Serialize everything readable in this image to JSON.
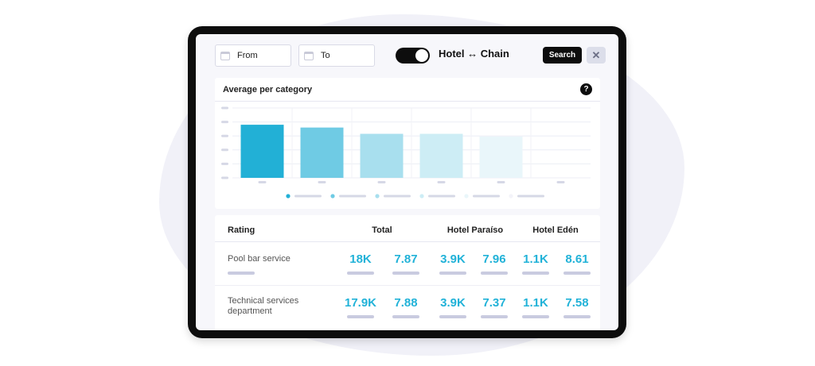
{
  "filters": {
    "from_label": "From",
    "to_label": "To",
    "toggle_label": "Hotel ↔ Chain",
    "toggle_on": true,
    "search_label": "Search",
    "clear_label": "✕"
  },
  "chart_card": {
    "title": "Average per category",
    "help_label": "?"
  },
  "chart_data": {
    "type": "bar",
    "title": "Average per category",
    "categories": [
      "",
      "",
      "",
      "",
      "",
      ""
    ],
    "values": [
      76,
      72,
      63,
      63,
      59,
      0
    ],
    "ylim": [
      0,
      100
    ],
    "grid": true,
    "colors": [
      "#22b0d6",
      "#6fcbe4",
      "#a8dfee",
      "#cdedf5",
      "#e9f6fa",
      "#f3f3f9"
    ],
    "legend_position": "bottom"
  },
  "table": {
    "headers": {
      "rating": "Rating",
      "total": "Total",
      "hotel1": "Hotel Paraíso",
      "hotel2": "Hotel Edén"
    },
    "rows": [
      {
        "label": "Pool bar service",
        "total_count": "18K",
        "total_score": "7.87",
        "hotel1_count": "3.9K",
        "hotel1_score": "7.96",
        "hotel2_count": "1.1K",
        "hotel2_score": "8.61"
      },
      {
        "label": "Technical services department",
        "total_count": "17.9K",
        "total_score": "7.88",
        "hotel1_count": "3.9K",
        "hotel1_score": "7.37",
        "hotel2_count": "1.1K",
        "hotel2_score": "7.58"
      }
    ]
  }
}
